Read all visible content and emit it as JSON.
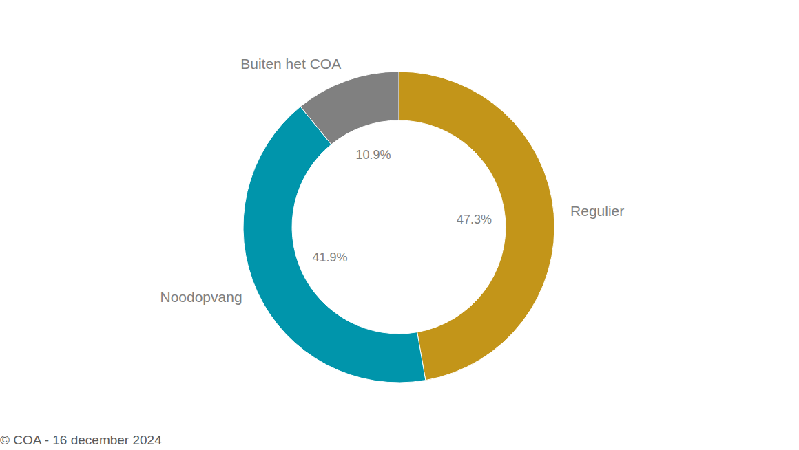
{
  "chart_data": {
    "type": "donut",
    "categories": [
      "Regulier",
      "Noodopvang",
      "Buiten het COA"
    ],
    "values": [
      47.3,
      41.9,
      10.9
    ],
    "value_labels": [
      "47.3%",
      "41.9%",
      "10.9%"
    ],
    "colors": [
      "#c39519",
      "#0095ab",
      "#808080"
    ],
    "data_labels": true,
    "annotation": "© COA - 16 december 2024"
  }
}
